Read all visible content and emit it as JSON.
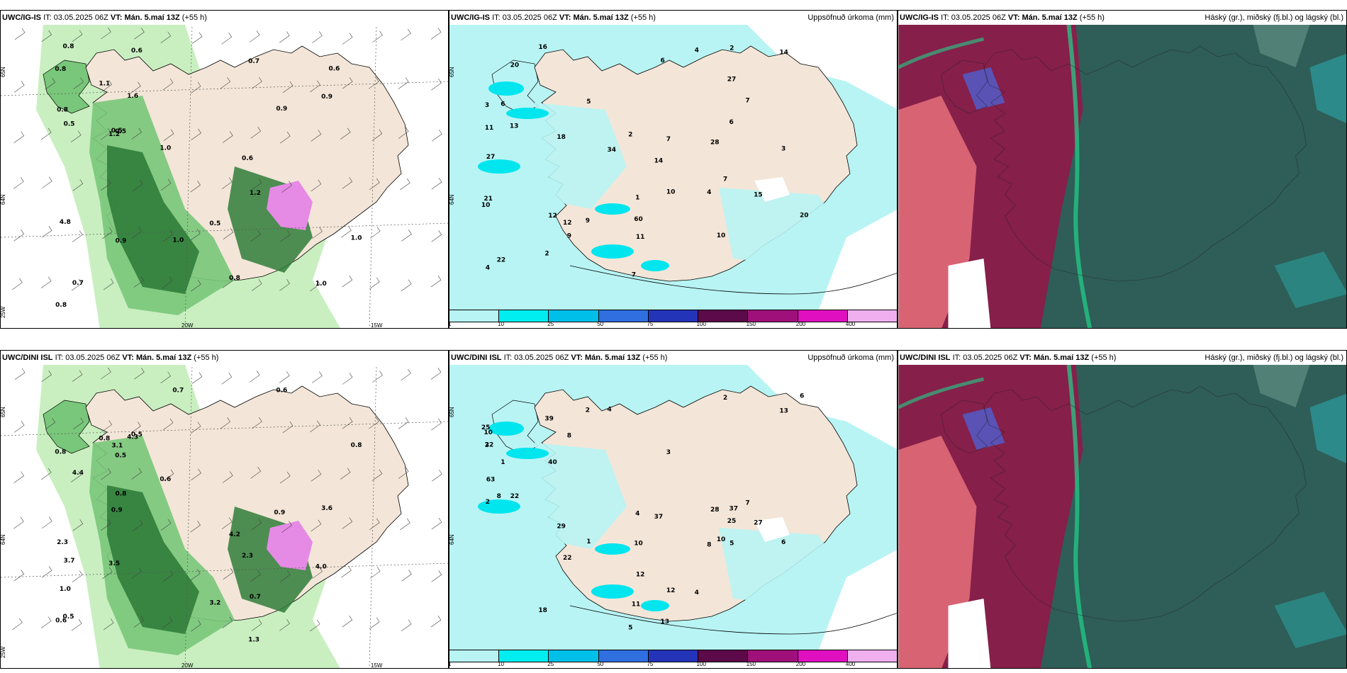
{
  "colors": {
    "land": "#f3e6d8",
    "sea_white": "#ffffff",
    "precip_cyan_light": "#b8f4f4",
    "precip_cyan": "#00e5ee",
    "precip_blue": "#00bfe8",
    "green_light": "#c9efc0",
    "green_mid": "#79c77a",
    "green_dark": "#2f7d3a",
    "green_darkest": "#1b5129",
    "purple": "#e58ae5",
    "cloud_dark": "#2f5d57",
    "cloud_red": "#8b1b4a",
    "cloud_pink": "#e06a78",
    "cloud_green": "#1fd48a"
  },
  "panels": [
    {
      "model": "UWC/IG-IS",
      "it_label": "IT:",
      "it_value": "03.05.2025 06Z",
      "vt_label": "VT:",
      "vt_value": "Mán. 5.maí 13Z",
      "lead": "(+55 h)",
      "right_title": "",
      "type": "wind",
      "lat_labels": [
        "65N",
        "64N",
        "25W"
      ],
      "lon_labels": [
        "20W",
        "15W"
      ],
      "values": [
        "0.6",
        "0.8",
        "0.5",
        "0.8",
        "1.0",
        "0.9",
        "0.6",
        "1.1",
        "0.9",
        "0.8",
        "1.2",
        "4.8",
        "1.6",
        "1.2",
        "1.0",
        "0.8",
        "0.5",
        "0.7",
        "0.6",
        "0.5",
        "0.7",
        "1.0",
        "0.8",
        "0.5",
        "1.0",
        "0.9"
      ]
    },
    {
      "model": "UWC/IG-IS",
      "it_label": "IT:",
      "it_value": "03.05.2025 06Z",
      "vt_label": "VT:",
      "vt_value": "Mán. 5.maí 13Z",
      "lead": "(+55 h)",
      "right_title": "Uppsöfnuð úrkoma (mm)",
      "type": "precip",
      "lat_labels": [
        "65N",
        "64N"
      ],
      "lon_labels": [],
      "values": [
        "13",
        "14",
        "7",
        "7",
        "10",
        "20",
        "22",
        "20",
        "18",
        "10",
        "11",
        "9",
        "10",
        "60",
        "27",
        "12",
        "14",
        "6",
        "11",
        "34",
        "16",
        "12",
        "15",
        "6",
        "27",
        "21",
        "7",
        "4",
        "2",
        "28",
        "3",
        "4",
        "2",
        "1",
        "5",
        "3",
        "4",
        "2",
        "7",
        "9",
        "6"
      ]
    },
    {
      "model": "UWC/IG-IS",
      "it_label": "IT:",
      "it_value": "03.05.2025 06Z",
      "vt_label": "VT:",
      "vt_value": "Mán. 5.maí 13Z",
      "lead": "(+55 h)",
      "right_title": "Háský (gr.), miðský (fj.bl.) og lágský (bl.)",
      "type": "cloud",
      "lat_labels": [],
      "lon_labels": [],
      "values": []
    },
    {
      "model": "UWC/DINI ISL",
      "it_label": "IT:",
      "it_value": "03.05.2025 06Z",
      "vt_label": "VT:",
      "vt_value": "Mán. 5.maí 13Z",
      "lead": "(+55 h)",
      "right_title": "",
      "type": "wind",
      "lat_labels": [
        "65N",
        "64N",
        "25W"
      ],
      "lon_labels": [
        "20W",
        "15W"
      ],
      "values": [
        "0.5",
        "3.2",
        "0.8",
        "0.8",
        "0.6",
        "0.5",
        "0.8",
        "3.6",
        "2.3",
        "0.7",
        "1.0",
        "4.3",
        "3.5",
        "4.0",
        "4.2",
        "3.7",
        "4.4",
        "2.3",
        "0.9",
        "1.3",
        "0.7",
        "0.6",
        "0.5",
        "0.6",
        "0.8",
        "0.9",
        "3.1"
      ]
    },
    {
      "model": "UWC/DINI ISL",
      "it_label": "IT:",
      "it_value": "03.05.2025 06Z",
      "vt_label": "VT:",
      "vt_value": "Mán. 5.maí 13Z",
      "lead": "(+55 h)",
      "right_title": "Uppsöfnuð úrkoma (mm)",
      "type": "precip",
      "lat_labels": [
        "65N",
        "64N"
      ],
      "lon_labels": [],
      "values": [
        "13",
        "11",
        "2",
        "12",
        "6",
        "8",
        "22",
        "29",
        "25",
        "22",
        "8",
        "10",
        "10",
        "63",
        "40",
        "37",
        "13",
        "12",
        "4",
        "18",
        "22",
        "27",
        "37",
        "25",
        "10",
        "7",
        "4",
        "39",
        "28",
        "3",
        "2",
        "5",
        "4",
        "1",
        "6",
        "8",
        "5",
        "3",
        "2",
        "1"
      ]
    },
    {
      "model": "UWC/DINI ISL",
      "it_label": "IT:",
      "it_value": "03.05.2025 06Z",
      "vt_label": "VT:",
      "vt_value": "Mán. 5.maí 13Z",
      "lead": "(+55 h)",
      "right_title": "Háský (gr.), miðský (fj.bl.) og lágský (bl.)",
      "type": "cloud",
      "lat_labels": [],
      "lon_labels": [],
      "values": []
    }
  ],
  "precip_legend": {
    "labels": [
      "1",
      "10",
      "25",
      "50",
      "75",
      "100",
      "150",
      "200",
      "400"
    ],
    "colors": [
      "#b8f4f4",
      "#00eef0",
      "#00bfe8",
      "#2f6fe0",
      "#2434b8",
      "#5c0a4a",
      "#a0107a",
      "#e010c0",
      "#f0b0f0"
    ]
  }
}
